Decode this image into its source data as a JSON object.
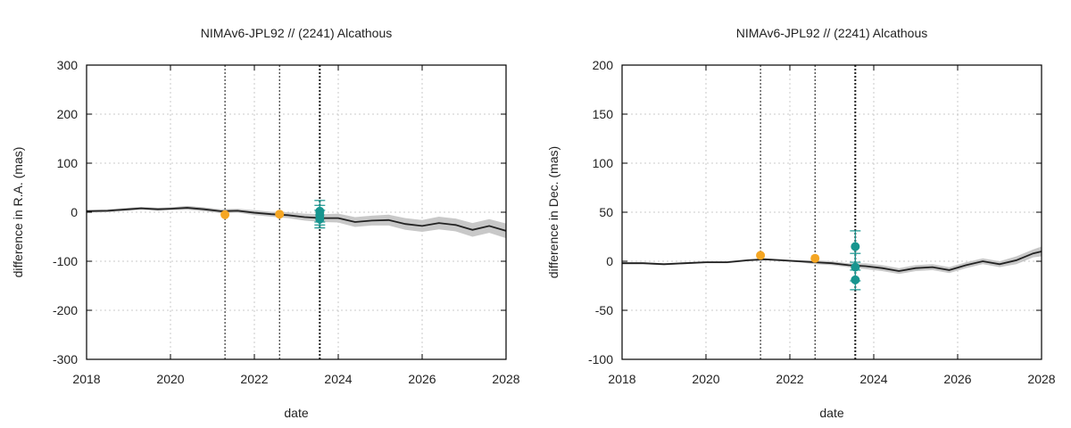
{
  "colors": {
    "model_line": "#222222",
    "uncertainty_band": "#c8c8c8",
    "obs_orange": "#f5a623",
    "obs_teal": "#17958f",
    "grid": "#bbbbbb"
  },
  "chart_data": [
    {
      "type": "line",
      "title": "NIMAv6-JPL92 // (2241) Alcathous",
      "xlabel": "date",
      "ylabel": "difference in R.A. (mas)",
      "xlim": [
        2018,
        2028
      ],
      "ylim": [
        -300,
        300
      ],
      "xticks": [
        "2018",
        "2020",
        "2022",
        "2024",
        "2026",
        "2028"
      ],
      "yticks": [
        "-300",
        "-200",
        "-100",
        "0",
        "100",
        "200",
        "300"
      ],
      "grid": true,
      "vlines": [
        2021.3,
        2022.6,
        2023.55,
        2023.57
      ],
      "series": [
        {
          "kind": "model",
          "x": [
            2018,
            2018.5,
            2019,
            2019.3,
            2019.7,
            2020,
            2020.4,
            2020.8,
            2021.2,
            2021.6,
            2022,
            2022.4,
            2022.8,
            2023.2,
            2023.6,
            2024,
            2024.4,
            2024.8,
            2025.2,
            2025.6,
            2026,
            2026.4,
            2026.8,
            2027.2,
            2027.6,
            2028
          ],
          "y": [
            2,
            3,
            6,
            8,
            6,
            7,
            9,
            6,
            2,
            3,
            -1,
            -4,
            -6,
            -10,
            -12,
            -12,
            -20,
            -17,
            -16,
            -24,
            -28,
            -22,
            -26,
            -36,
            -28,
            -38
          ],
          "band": [
            3,
            3,
            3,
            3,
            3,
            3,
            4,
            4,
            4,
            4,
            5,
            5,
            6,
            7,
            8,
            9,
            10,
            10,
            11,
            12,
            12,
            13,
            13,
            14,
            14,
            15
          ]
        },
        {
          "kind": "obs",
          "color": "orange",
          "points": [
            {
              "x": 2021.3,
              "y": -5,
              "err": 0
            },
            {
              "x": 2022.6,
              "y": -4,
              "err": 0
            }
          ]
        },
        {
          "kind": "obs",
          "color": "teal",
          "points": [
            {
              "x": 2023.56,
              "y": 2,
              "err": 22
            },
            {
              "x": 2023.56,
              "y": -6,
              "err": 20
            },
            {
              "x": 2023.56,
              "y": -14,
              "err": 18
            }
          ]
        }
      ]
    },
    {
      "type": "line",
      "title": "NIMAv6-JPL92 // (2241) Alcathous",
      "xlabel": "date",
      "ylabel": "difference in Dec. (mas)",
      "xlim": [
        2018,
        2028
      ],
      "ylim": [
        -100,
        200
      ],
      "xticks": [
        "2018",
        "2020",
        "2022",
        "2024",
        "2026",
        "2028"
      ],
      "yticks": [
        "-100",
        "-50",
        "0",
        "50",
        "100",
        "150",
        "200"
      ],
      "grid": true,
      "vlines": [
        2021.3,
        2022.6,
        2023.55,
        2023.57
      ],
      "series": [
        {
          "kind": "model",
          "x": [
            2018,
            2018.5,
            2019,
            2019.5,
            2020,
            2020.5,
            2021,
            2021.4,
            2021.8,
            2022.2,
            2022.6,
            2023,
            2023.4,
            2023.8,
            2024.2,
            2024.6,
            2025,
            2025.4,
            2025.8,
            2026.2,
            2026.6,
            2027,
            2027.4,
            2027.8,
            2028
          ],
          "y": [
            -2,
            -2,
            -3,
            -2,
            -1,
            -1,
            1,
            2,
            1,
            0,
            -1,
            -2,
            -4,
            -5,
            -7,
            -10,
            -7,
            -6,
            -9,
            -4,
            0,
            -3,
            1,
            8,
            10
          ],
          "band": [
            1,
            1,
            1,
            1,
            1,
            1,
            1,
            1,
            1,
            1,
            2,
            2,
            2,
            3,
            3,
            3,
            3,
            3,
            3,
            3,
            3,
            3,
            4,
            4,
            5
          ]
        },
        {
          "kind": "obs",
          "color": "orange",
          "points": [
            {
              "x": 2021.3,
              "y": 6,
              "err": 0
            },
            {
              "x": 2022.6,
              "y": 3,
              "err": 0
            }
          ]
        },
        {
          "kind": "obs",
          "color": "teal",
          "points": [
            {
              "x": 2023.56,
              "y": 15,
              "err": 16
            },
            {
              "x": 2023.56,
              "y": -6,
              "err": 14
            },
            {
              "x": 2023.56,
              "y": -19,
              "err": 10
            }
          ]
        }
      ]
    }
  ]
}
